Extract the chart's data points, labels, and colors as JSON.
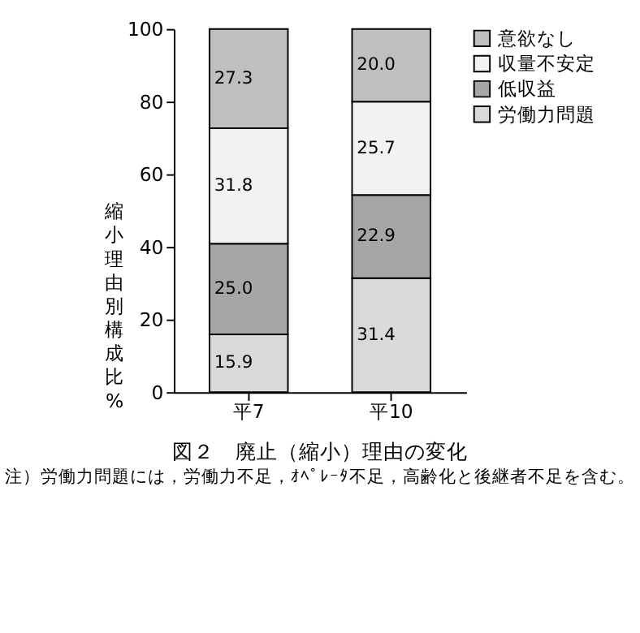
{
  "chart_data": {
    "type": "bar",
    "stacked": true,
    "title": "図２　廃止（縮小）理由の変化",
    "ylabel": "縮小理由別構成比%",
    "categories": [
      "平7",
      "平10"
    ],
    "series": [
      {
        "name": "労働力問題",
        "color": "#d9d9d9",
        "values": [
          15.9,
          31.4
        ],
        "value_labels": [
          "15.9",
          "31.4"
        ]
      },
      {
        "name": "低収益",
        "color": "#a6a6a6",
        "values": [
          25.0,
          22.9
        ],
        "value_labels": [
          "25.0",
          "22.9"
        ]
      },
      {
        "name": "収量不安定",
        "color": "#f2f2f2",
        "values": [
          31.8,
          25.7
        ],
        "value_labels": [
          "31.8",
          "25.7"
        ]
      },
      {
        "name": "意欲なし",
        "color": "#bfbfbf",
        "values": [
          27.3,
          20.0
        ],
        "value_labels": [
          "27.3",
          "20.0"
        ]
      }
    ],
    "ylim": [
      0,
      100
    ],
    "yticks": [
      0,
      20,
      40,
      60,
      80,
      100
    ],
    "grid": false,
    "legend": "top right",
    "annotations": [
      "注）労働力問題には，労働力不足，ｵﾍﾟﾚｰﾀ不足，高齢化と後継者不足を含む。"
    ]
  }
}
